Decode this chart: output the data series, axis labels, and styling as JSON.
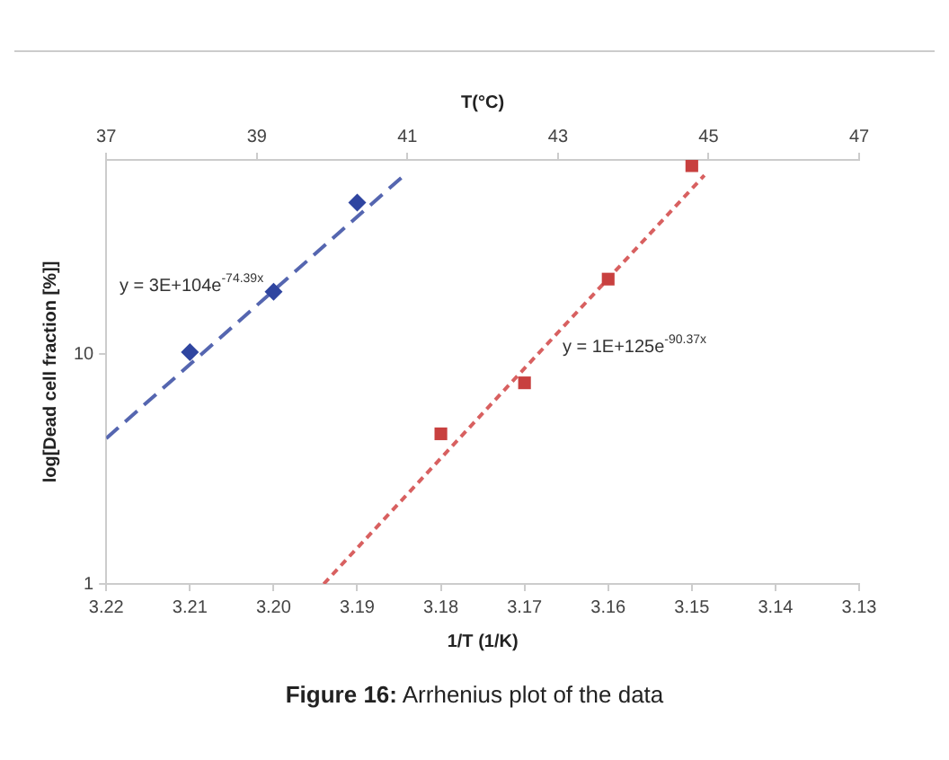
{
  "chart_data": {
    "type": "scatter",
    "title": "Figure 16: Arrhenius plot of the data",
    "xlabel": "1/T (1/K)",
    "ylabel": "log[Dead cell fraction [%]]",
    "x2label": "T(°C)",
    "xlim": [
      3.22,
      3.13
    ],
    "xticks": [
      {
        "value": 3.22,
        "label": "3.22"
      },
      {
        "value": 3.21,
        "label": "3.21"
      },
      {
        "value": 3.2,
        "label": "3.20"
      },
      {
        "value": 3.19,
        "label": "3.19"
      },
      {
        "value": 3.18,
        "label": "3.18"
      },
      {
        "value": 3.17,
        "label": "3.17"
      },
      {
        "value": 3.16,
        "label": "3.16"
      },
      {
        "value": 3.15,
        "label": "3.15"
      },
      {
        "value": 3.14,
        "label": "3.14"
      },
      {
        "value": 3.13,
        "label": "3.13"
      }
    ],
    "x2lim": [
      37,
      47
    ],
    "x2ticks": [
      37,
      39,
      41,
      43,
      45,
      47
    ],
    "ylim": [
      1,
      70
    ],
    "yticks": [
      1,
      10
    ],
    "log": "y",
    "grid": false,
    "legend": false,
    "series": [
      {
        "color": "#2f45a0",
        "marker": "diamond",
        "x": [
          3.21,
          3.2,
          3.19
        ],
        "values": [
          10.2,
          18.7,
          45.6
        ]
      },
      {
        "color": "#c8403f",
        "marker": "square",
        "x": [
          3.18,
          3.17,
          3.16,
          3.15
        ],
        "values": [
          4.5,
          7.5,
          21.2,
          66
        ]
      },
      {
        "type": "line",
        "color": "#5566b0",
        "marker": "none",
        "line_style": "dashed",
        "x": [
          3.22,
          3.1844
        ],
        "values": [
          4.3,
          60
        ]
      },
      {
        "type": "line",
        "color": "#d86060",
        "marker": "none",
        "line_style": "dotted",
        "x": [
          3.194,
          3.1485
        ],
        "values": [
          1,
          60
        ]
      }
    ],
    "annotations": [
      "y = 3E+104e$^{-74.39x}$",
      "y = 1E+125e$^{-90.37x}$"
    ]
  }
}
